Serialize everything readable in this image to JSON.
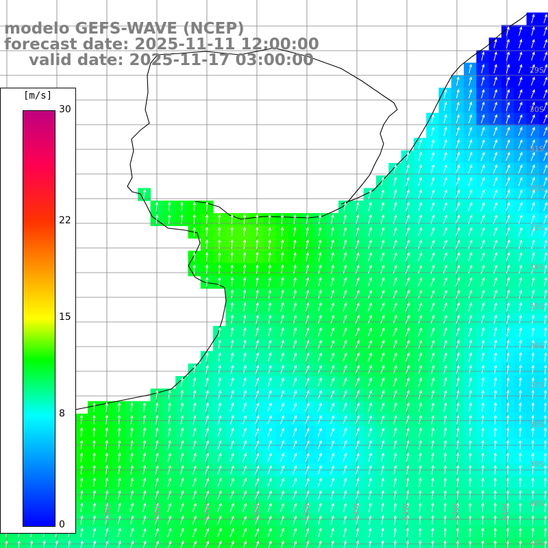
{
  "title": {
    "model": "modelo GEFS-WAVE (NCEP)",
    "forecast": "forecast date: 2025-11-11 12:00:00",
    "valid": "valid date: 2025-11-17 03:00:00"
  },
  "colorbar": {
    "unit": "[m/s]",
    "min": 0,
    "max": 30,
    "ticks": [
      "30",
      "22",
      "15",
      "8",
      "0"
    ],
    "tick_values": [
      30,
      22,
      15,
      8,
      0
    ],
    "stops": [
      {
        "value": 0,
        "color": "#0000ff"
      },
      {
        "value": 8,
        "color": "#00ffff"
      },
      {
        "value": 12,
        "color": "#00ff00"
      },
      {
        "value": 15,
        "color": "#ffff00"
      },
      {
        "value": 22,
        "color": "#ff3300"
      },
      {
        "value": 26,
        "color": "#ff0050"
      },
      {
        "value": 30,
        "color": "#c00080"
      }
    ]
  },
  "colors": {
    "land": "#ffffff",
    "coastline": "#000000",
    "grid": "#808080",
    "arrows": "#ffffff",
    "labels": "#a0a0a0"
  },
  "axes": {
    "lon_labels": [
      "61W",
      "60W",
      "59W",
      "58W",
      "57W",
      "56W",
      "55W",
      "54W",
      "53W",
      "52W",
      "51W"
    ],
    "lat_labels": [
      "29S",
      "30S",
      "31S",
      "32S",
      "33S",
      "34S",
      "35S",
      "36S",
      "37S",
      "38S",
      "39S",
      "40S",
      "41S"
    ]
  },
  "wind": {
    "prevailing_direction": "from south-southwest",
    "range_m_s": [
      2,
      13
    ]
  }
}
